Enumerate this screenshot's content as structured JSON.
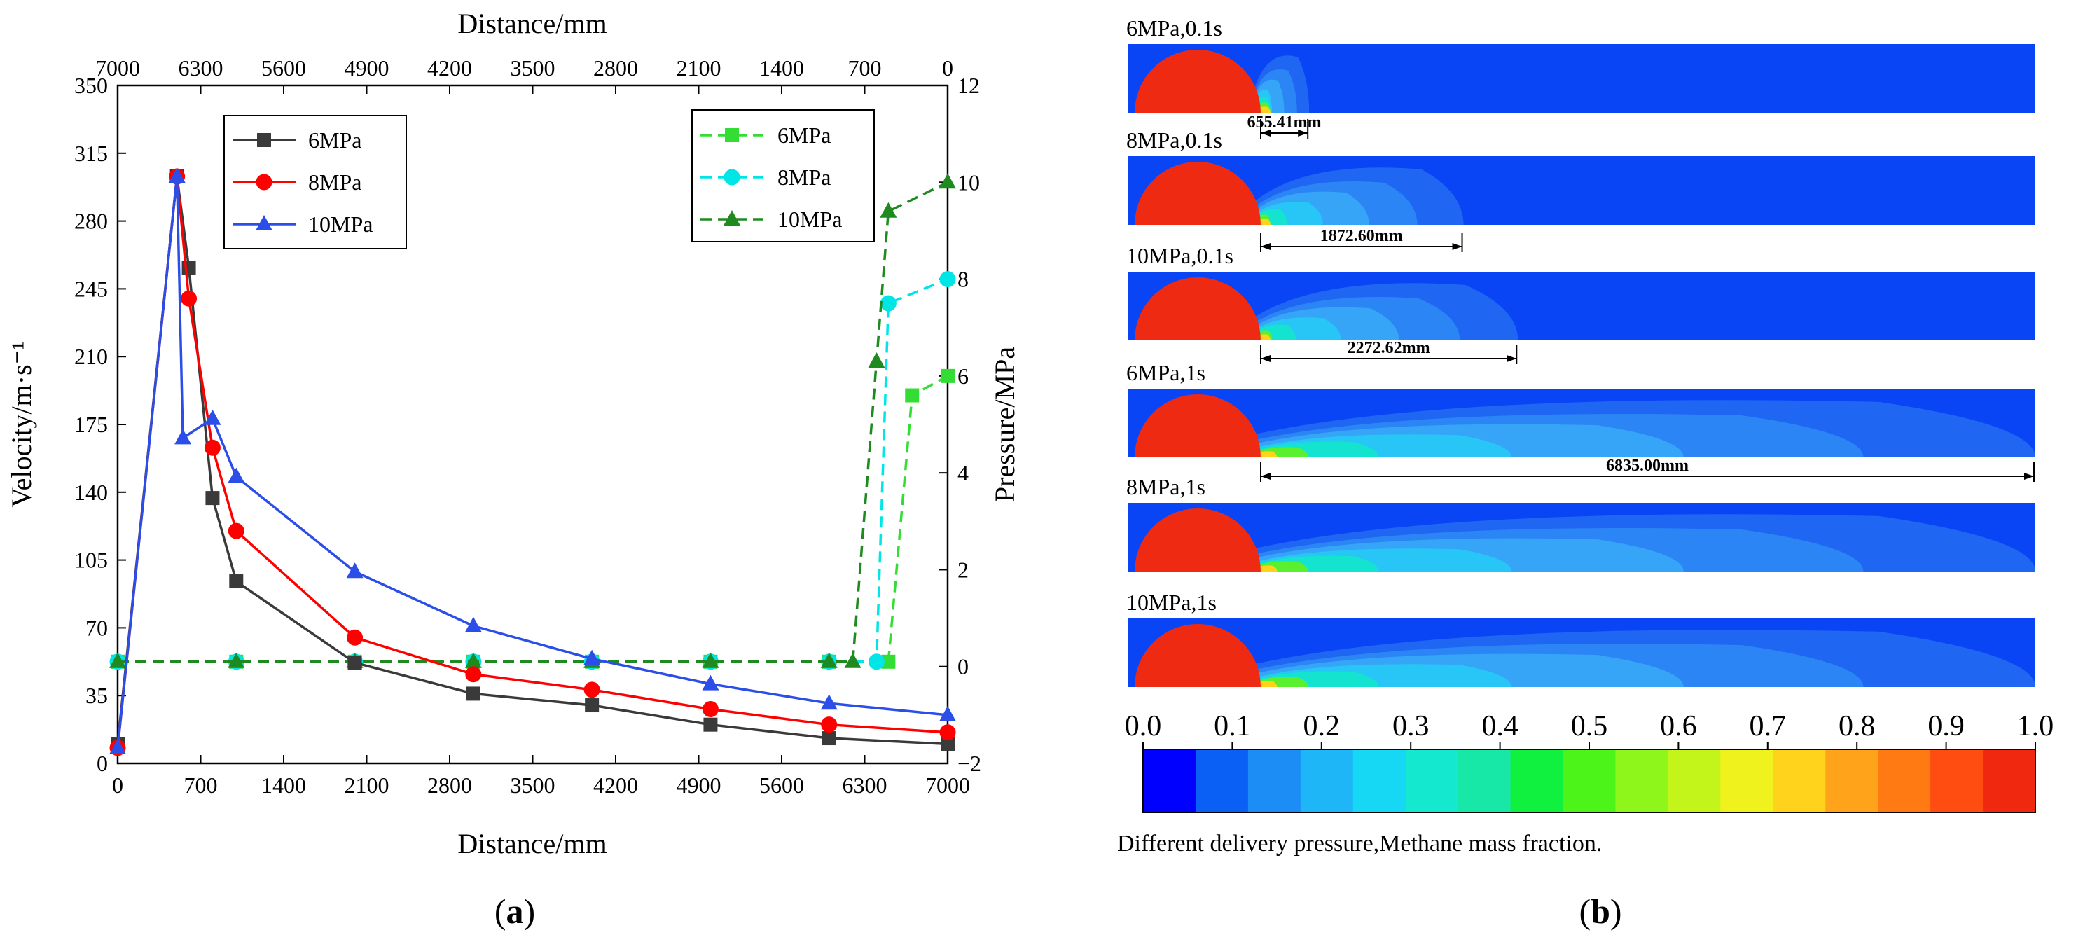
{
  "chart_data": [
    {
      "type": "line",
      "panel_label": "(a)",
      "xlabel": "Distance/mm",
      "x2label": "Distance/mm",
      "ylabel": "Velocity/m·s⁻¹",
      "y2label": "Pressure/MPa",
      "xlim": [
        0,
        7000
      ],
      "ylim": [
        0,
        350
      ],
      "x2lim": [
        7000,
        0
      ],
      "y2lim": [
        -2,
        12
      ],
      "xticks": [
        0,
        700,
        1400,
        2100,
        2800,
        3500,
        4200,
        4900,
        5600,
        6300,
        7000
      ],
      "x2ticks": [
        7000,
        6300,
        5600,
        4900,
        4200,
        3500,
        2800,
        2100,
        1400,
        700,
        0
      ],
      "yticks": [
        0,
        35,
        70,
        105,
        140,
        175,
        210,
        245,
        280,
        315,
        350
      ],
      "y2ticks": [
        -2,
        0,
        2,
        4,
        6,
        8,
        10,
        12
      ],
      "legend_velocity": [
        "6MPa",
        "8MPa",
        "10MPa"
      ],
      "legend_pressure": [
        "6MPa",
        "8MPa",
        "10MPa"
      ],
      "velocity_series": [
        {
          "name": "6MPa",
          "color": "#3a3a3a",
          "marker": "square",
          "x": [
            0,
            500,
            600,
            800,
            1000,
            2000,
            3000,
            4000,
            5000,
            6000,
            7000
          ],
          "y": [
            10,
            303,
            256,
            137,
            94,
            52,
            36,
            30,
            20,
            13,
            10
          ]
        },
        {
          "name": "8MPa",
          "color": "#ff0000",
          "marker": "circle",
          "x": [
            0,
            500,
            600,
            800,
            1000,
            2000,
            3000,
            4000,
            5000,
            6000,
            7000
          ],
          "y": [
            8,
            303,
            240,
            163,
            120,
            65,
            46,
            38,
            28,
            20,
            16
          ]
        },
        {
          "name": "10MPa",
          "color": "#2b4ee8",
          "marker": "triangle",
          "x": [
            0,
            500,
            550,
            800,
            1000,
            2000,
            3000,
            4000,
            5000,
            6000,
            7000
          ],
          "y": [
            8,
            303,
            168,
            178,
            148,
            99,
            71,
            54,
            41,
            31,
            25
          ]
        }
      ],
      "pressure_series": [
        {
          "name": "6MPa",
          "color": "#33dd33",
          "marker": "square",
          "x": [
            7000,
            6000,
            5000,
            4000,
            3000,
            2000,
            1000,
            500,
            300,
            0
          ],
          "y": [
            0.1,
            0.1,
            0.1,
            0.1,
            0.1,
            0.1,
            0.1,
            0.1,
            5.6,
            6.0
          ]
        },
        {
          "name": "8MPa",
          "color": "#00e5e5",
          "marker": "circle",
          "x": [
            7000,
            6000,
            5000,
            4000,
            3000,
            2000,
            1000,
            600,
            500,
            0
          ],
          "y": [
            0.1,
            0.1,
            0.1,
            0.1,
            0.1,
            0.1,
            0.1,
            0.1,
            7.5,
            8.0
          ]
        },
        {
          "name": "10MPa",
          "color": "#1f8a1f",
          "marker": "triangle",
          "x": [
            7000,
            6000,
            5000,
            4000,
            3000,
            2000,
            1000,
            800,
            600,
            500,
            0
          ],
          "y": [
            0.1,
            0.1,
            0.1,
            0.1,
            0.1,
            0.1,
            0.1,
            0.1,
            6.3,
            9.4,
            10.0
          ]
        }
      ]
    },
    {
      "type": "heatmap",
      "panel_label": "(b)",
      "title": "Different delivery pressure,Methane mass fraction.",
      "colorbar": {
        "ticks": [
          "0.0",
          "0.1",
          "0.2",
          "0.3",
          "0.4",
          "0.5",
          "0.6",
          "0.7",
          "0.8",
          "0.9",
          "1.0"
        ],
        "colors": [
          "#0000ff",
          "#0a5ff5",
          "#1c8df5",
          "#1fb6f8",
          "#17d8f4",
          "#14e8cf",
          "#18e8a7",
          "#0ff03f",
          "#4cf419",
          "#8ef61a",
          "#c4f51b",
          "#f0f21d",
          "#ffd21c",
          "#ffa41a",
          "#ff7a12",
          "#ff4d12",
          "#f0280f"
        ]
      },
      "cases": [
        {
          "label": "6MPa,0.1s",
          "dimension": "655.41mm",
          "plume_extent": 0.2
        },
        {
          "label": "8MPa,0.1s",
          "dimension": "1872.60mm",
          "plume_extent": 0.37
        },
        {
          "label": "10MPa,0.1s",
          "dimension": "2272.62mm",
          "plume_extent": 0.43
        },
        {
          "label": "6MPa,1s",
          "dimension": "6835.00mm",
          "plume_extent": 1.0
        },
        {
          "label": "8MPa,1s",
          "dimension": "",
          "plume_extent": 1.0
        },
        {
          "label": "10MPa,1s",
          "dimension": "",
          "plume_extent": 1.0
        }
      ]
    }
  ]
}
